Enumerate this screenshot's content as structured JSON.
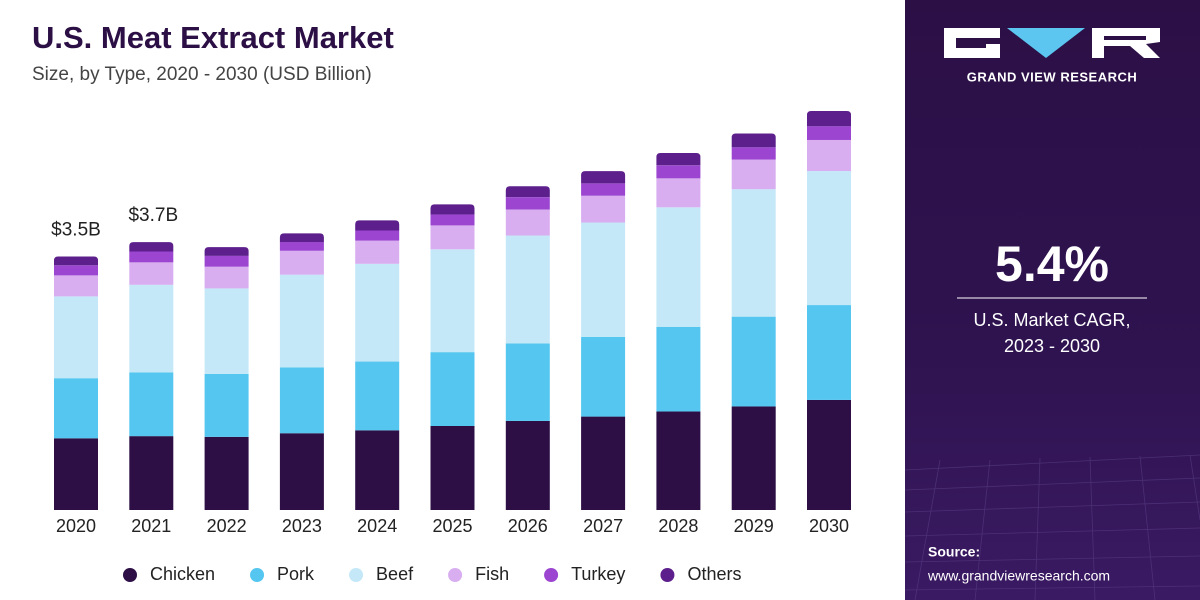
{
  "chart_data": {
    "type": "bar",
    "stacked": true,
    "title": "U.S. Meat Extract Market",
    "subtitle": "Size, by Type, 2020 - 2030 (USD Billion)",
    "categories": [
      "2020",
      "2021",
      "2022",
      "2023",
      "2024",
      "2025",
      "2026",
      "2027",
      "2028",
      "2029",
      "2030"
    ],
    "series": [
      {
        "name": "Chicken",
        "color": "#2d0f45",
        "values": [
          0.99,
          1.02,
          1.01,
          1.06,
          1.1,
          1.16,
          1.23,
          1.29,
          1.36,
          1.43,
          1.52
        ]
      },
      {
        "name": "Pork",
        "color": "#55c6f0",
        "values": [
          0.83,
          0.88,
          0.87,
          0.91,
          0.95,
          1.02,
          1.07,
          1.1,
          1.17,
          1.24,
          1.31
        ]
      },
      {
        "name": "Beef",
        "color": "#c4e8f8",
        "values": [
          1.13,
          1.21,
          1.18,
          1.28,
          1.35,
          1.42,
          1.49,
          1.58,
          1.65,
          1.76,
          1.85
        ]
      },
      {
        "name": "Fish",
        "color": "#d8aef0",
        "values": [
          0.29,
          0.31,
          0.3,
          0.33,
          0.32,
          0.33,
          0.36,
          0.37,
          0.4,
          0.41,
          0.43
        ]
      },
      {
        "name": "Turkey",
        "color": "#9b45d0",
        "values": [
          0.14,
          0.15,
          0.15,
          0.12,
          0.14,
          0.15,
          0.17,
          0.17,
          0.18,
          0.17,
          0.19
        ]
      },
      {
        "name": "Others",
        "color": "#5c1f8c",
        "values": [
          0.12,
          0.13,
          0.12,
          0.12,
          0.14,
          0.14,
          0.15,
          0.17,
          0.17,
          0.19,
          0.21
        ]
      }
    ],
    "totals": {
      "values": [
        3.5,
        3.7,
        null,
        null,
        null,
        null,
        null,
        null,
        null,
        null,
        null
      ],
      "value_labels": [
        "$3.5B",
        "$3.7B",
        null,
        null,
        null,
        null,
        null,
        null,
        null,
        null,
        null
      ]
    }
  },
  "sidebar": {
    "brand": "GRAND VIEW RESEARCH",
    "cagr_value": "5.4%",
    "cagr_label": "U.S. Market CAGR,",
    "cagr_period": "2023 - 2030",
    "source_label": "Source:",
    "source_url": "www.grandviewresearch.com"
  }
}
